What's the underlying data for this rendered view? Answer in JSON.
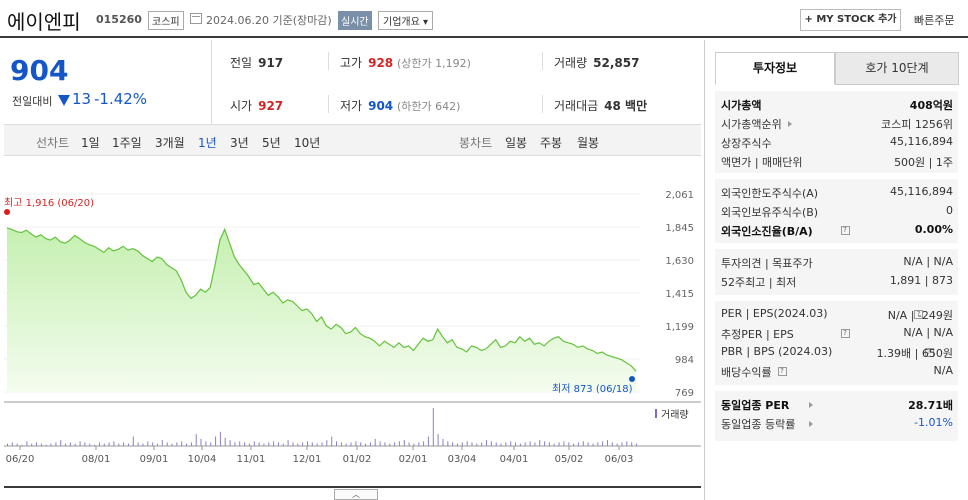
{
  "header": {
    "name": "에이엔피",
    "code": "015260",
    "market": "코스피",
    "date": "2024.06.20 기준(장마감)",
    "realtime": "실시간",
    "company": "기업개요 ▾",
    "mystock": "+ MY STOCK 추가",
    "quick_order": "빠른주문"
  },
  "summary": {
    "price": "904",
    "change_label": "전일대비",
    "change": "13",
    "change_pct": "-1.42%",
    "prev_label": "전일",
    "prev": "917",
    "high_label": "고가",
    "high": "928",
    "upper_limit": "(상한가 1,192)",
    "volume_label": "거래량",
    "volume": "52,857",
    "open_label": "시가",
    "open": "927",
    "low_label": "저가",
    "low": "904",
    "lower_limit": "(하한가 642)",
    "amount_label": "거래대금",
    "amount": "48 백만"
  },
  "period": {
    "line_chart": "선차트",
    "items": [
      "1일",
      "1주일",
      "3개월",
      "1년",
      "3년",
      "5년",
      "10년"
    ],
    "active": "1년",
    "candle_chart": "봉차트",
    "candle_items": [
      "일봉",
      "주봉",
      "월봉"
    ]
  },
  "chart_data": {
    "type": "area",
    "y_ticks": [
      "2,061",
      "1,845",
      "1,630",
      "1,415",
      "1,199",
      "984",
      "769"
    ],
    "ylim": [
      769,
      2061
    ],
    "x_labels": [
      "06/20",
      "08/01",
      "09/01",
      "10/04",
      "11/01",
      "12/01",
      "01/02",
      "02/01",
      "03/04",
      "04/01",
      "05/02",
      "06/03"
    ],
    "values": [
      1840,
      1830,
      1815,
      1810,
      1825,
      1800,
      1780,
      1795,
      1770,
      1760,
      1780,
      1750,
      1740,
      1760,
      1790,
      1770,
      1745,
      1730,
      1720,
      1700,
      1680,
      1710,
      1690,
      1700,
      1720,
      1695,
      1705,
      1690,
      1660,
      1640,
      1620,
      1650,
      1640,
      1600,
      1580,
      1560,
      1500,
      1420,
      1380,
      1400,
      1440,
      1420,
      1450,
      1600,
      1760,
      1830,
      1740,
      1650,
      1600,
      1560,
      1520,
      1470,
      1480,
      1440,
      1400,
      1420,
      1390,
      1350,
      1370,
      1360,
      1330,
      1300,
      1310,
      1280,
      1230,
      1260,
      1200,
      1180,
      1210,
      1190,
      1150,
      1160,
      1190,
      1150,
      1130,
      1120,
      1100,
      1070,
      1100,
      1080,
      1060,
      1090,
      1060,
      1070,
      1040,
      1080,
      1120,
      1100,
      1110,
      1180,
      1130,
      1090,
      1110,
      1060,
      1050,
      1030,
      1070,
      1060,
      1040,
      1050,
      1080,
      1110,
      1060,
      1070,
      1100,
      1090,
      1130,
      1100,
      1120,
      1080,
      1090,
      1070,
      1100,
      1120,
      1130,
      1100,
      1090,
      1080,
      1060,
      1070,
      1050,
      1040,
      1020,
      1030,
      1010,
      1000,
      990,
      980,
      960,
      940,
      904
    ],
    "max_label": "최고 1,916 (06/20)",
    "min_label": "최저 873 (06/18)",
    "volume_legend": "거래량",
    "volume_values": [
      2,
      3,
      2,
      1,
      4,
      2,
      3,
      2,
      1,
      2,
      3,
      5,
      2,
      3,
      2,
      4,
      3,
      2,
      1,
      3,
      2,
      3,
      4,
      2,
      3,
      2,
      8,
      3,
      2,
      4,
      3,
      2,
      5,
      3,
      2,
      3,
      4,
      2,
      3,
      10,
      6,
      4,
      3,
      8,
      12,
      7,
      5,
      3,
      4,
      3,
      2,
      4,
      3,
      2,
      3,
      4,
      3,
      2,
      5,
      3,
      2,
      3,
      4,
      3,
      2,
      3,
      5,
      8,
      4,
      3,
      2,
      3,
      4,
      3,
      2,
      3,
      6,
      4,
      3,
      2,
      3,
      4,
      5,
      3,
      2,
      3,
      4,
      8,
      32,
      10,
      6,
      4,
      3,
      2,
      3,
      4,
      3,
      2,
      3,
      5,
      4,
      3,
      2,
      3,
      4,
      3,
      2,
      3,
      4,
      3,
      5,
      4,
      3,
      2,
      3,
      4,
      3,
      2,
      3,
      4,
      3,
      2,
      3,
      4,
      5,
      3,
      2,
      3,
      4,
      3,
      2
    ]
  },
  "panel": {
    "tab_invest": "투자정보",
    "tab_quote": "호가 10단계",
    "g1": [
      {
        "l": "시가총액",
        "r": "408억원",
        "b": true
      },
      {
        "l": "시가총액순위",
        "r": "코스피 1256위",
        "tri": true
      },
      {
        "l": "상장주식수",
        "r": "45,116,894"
      },
      {
        "l": "액면가 | 매매단위",
        "r": "500원 | 1주"
      }
    ],
    "g2": [
      {
        "l": "외국인한도주식수(A)",
        "r": "45,116,894"
      },
      {
        "l": "외국인보유주식수(B)",
        "r": "0"
      },
      {
        "l": "외국인소진율(B/A)",
        "r": "0.00%",
        "b": true,
        "q": true
      }
    ],
    "g3": [
      {
        "l": "투자의견 | 목표주가",
        "r": "N/A | N/A"
      },
      {
        "l": "52주최고 | 최저",
        "r": "1,891 | 873"
      }
    ],
    "g4": [
      {
        "l": "PER | EPS(2024.03)",
        "r": "N/A | -249원",
        "q": true
      },
      {
        "l": "추정PER | EPS",
        "r": "N/A | N/A",
        "q": true
      },
      {
        "l": "PBR | BPS (2024.03)",
        "r": "1.39배 | 650원",
        "q": true
      },
      {
        "l": "배당수익률",
        "r": "N/A",
        "q": true
      }
    ],
    "g5": [
      {
        "l": "동일업종 PER",
        "r": "28.71배",
        "b": true,
        "tri": true
      },
      {
        "l": "동일업종 등락률",
        "r": "-1.01%",
        "blue": true,
        "tri": true
      }
    ]
  },
  "colors": {
    "up": "#d62424",
    "down": "#1456c8",
    "area_line": "#63c23a",
    "area_fill": "#d9f5c8"
  }
}
